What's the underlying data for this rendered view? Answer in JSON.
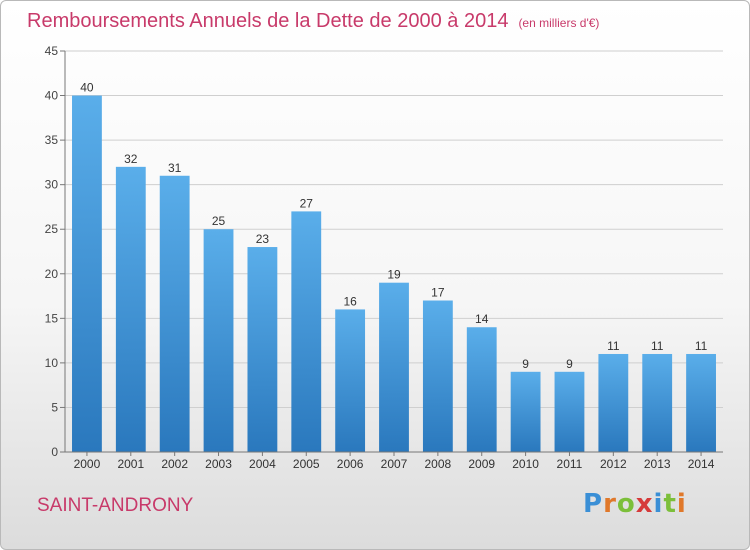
{
  "header": {
    "title": "Remboursements Annuels de la Dette de 2000 à 2014",
    "unit": "(en milliers d'€)"
  },
  "footer": {
    "commune": "SAINT-ANDRONY",
    "logo_text": "Proxiti"
  },
  "colors": {
    "title": "#c83a6a",
    "bar_top": "#5aaeea",
    "bar_bottom": "#2a78bd",
    "logo_letters": [
      "#3a8fd6",
      "#e0782a",
      "#7cbf3a",
      "#d63a3a",
      "#3a8fd6",
      "#7cbf3a",
      "#e0782a"
    ]
  },
  "chart_data": {
    "type": "bar",
    "categories": [
      "2000",
      "2001",
      "2002",
      "2003",
      "2004",
      "2005",
      "2006",
      "2007",
      "2008",
      "2009",
      "2010",
      "2011",
      "2012",
      "2013",
      "2014"
    ],
    "values": [
      40,
      32,
      31,
      25,
      23,
      27,
      16,
      19,
      17,
      14,
      9,
      9,
      11,
      11,
      11
    ],
    "title": "Remboursements Annuels de la Dette de 2000 à 2014",
    "unit": "(en milliers d'€)",
    "ylim": [
      0,
      45
    ],
    "yticks": [
      0,
      5,
      10,
      15,
      20,
      25,
      30,
      35,
      40,
      45
    ],
    "grid": true,
    "data_labels": true
  }
}
